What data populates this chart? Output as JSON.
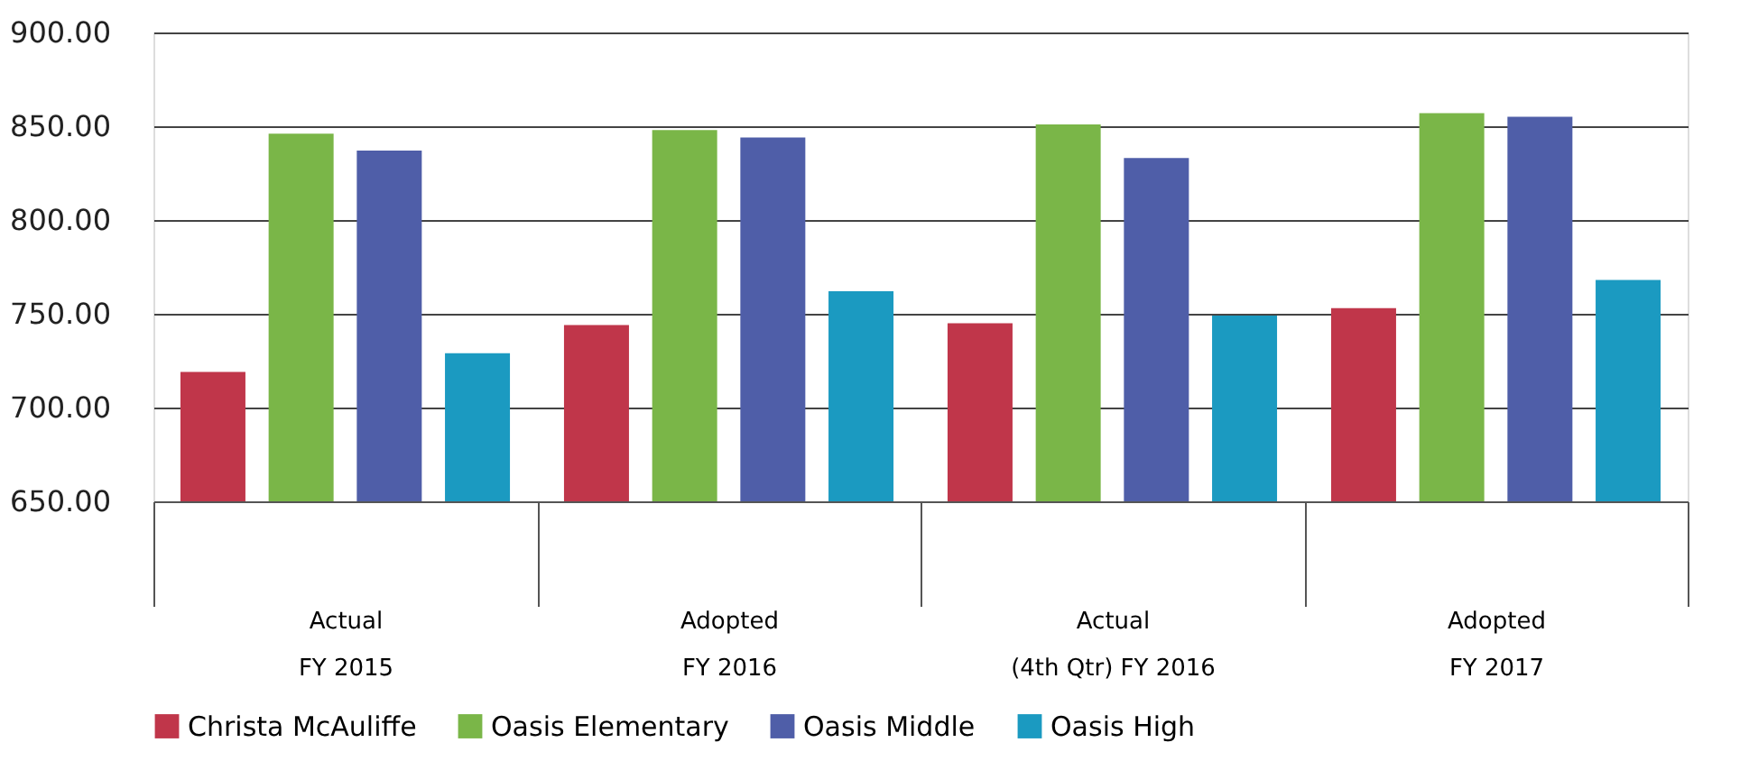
{
  "chart_data": {
    "type": "bar",
    "categories": [
      "Actual\nFY 2015",
      "Adopted\nFY 2016",
      "Actual\n(4th Qtr) FY 2016",
      "Adopted\nFY 2017"
    ],
    "series": [
      {
        "name": "Christa McAuliffe",
        "color": "#c0364a",
        "values": [
          719,
          744,
          745,
          753
        ]
      },
      {
        "name": "Oasis Elementary",
        "color": "#7ab648",
        "values": [
          846,
          848,
          851,
          857
        ]
      },
      {
        "name": "Oasis Middle",
        "color": "#4f5ea8",
        "values": [
          837,
          844,
          833,
          855
        ]
      },
      {
        "name": "Oasis High",
        "color": "#1b9ac1",
        "values": [
          729,
          762,
          749,
          768
        ]
      }
    ],
    "ylim": [
      650,
      900
    ],
    "yticks": [
      {
        "value": 650,
        "label": "650.00"
      },
      {
        "value": 700,
        "label": "700.00"
      },
      {
        "value": 750,
        "label": "750.00"
      },
      {
        "value": 800,
        "label": "800.00"
      },
      {
        "value": 850,
        "label": "850.00"
      },
      {
        "value": 900,
        "label": "900.00"
      }
    ],
    "grid": "y",
    "legend": "bottom"
  }
}
